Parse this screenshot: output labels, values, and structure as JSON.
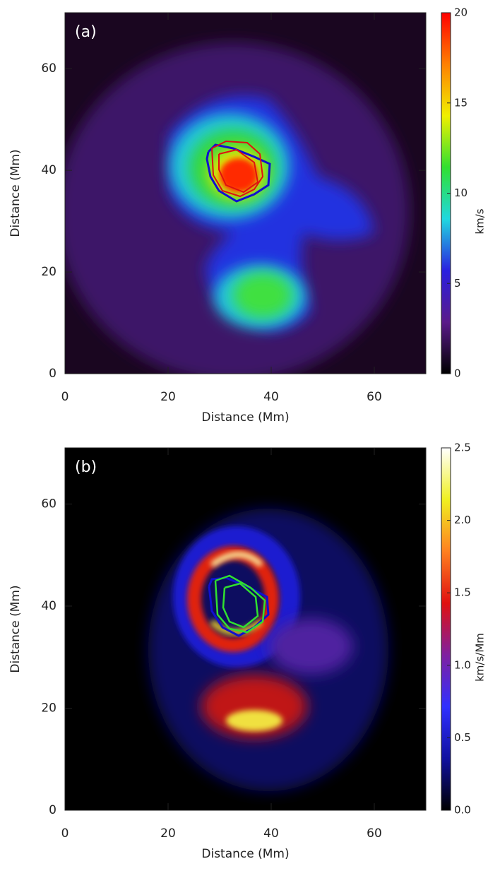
{
  "chart_data": [
    {
      "type": "image",
      "panel_label": "(a)",
      "x_label": "Distance (Mm)",
      "y_label": "Distance (Mm)",
      "xlim": [
        0,
        70
      ],
      "ylim": [
        0,
        71
      ],
      "xticks": [
        0,
        20,
        40,
        60
      ],
      "yticks": [
        0,
        20,
        40,
        60
      ],
      "colorbar_label": "km/s",
      "clim": [
        0,
        20
      ],
      "cticks": [
        0,
        5,
        10,
        15,
        20
      ],
      "colormap": [
        "#000000",
        "#5a1a8a",
        "#2a20e0",
        "#20d8e0",
        "#30e030",
        "#f0f000",
        "#ff8000",
        "#ff0000"
      ]
    },
    {
      "type": "image",
      "panel_label": "(b)",
      "x_label": "Distance (Mm)",
      "y_label": "Distance (Mm)",
      "xlim": [
        0,
        70
      ],
      "ylim": [
        0,
        71
      ],
      "xticks": [
        0,
        20,
        40,
        60
      ],
      "yticks": [
        0,
        20,
        40,
        60
      ],
      "colorbar_label": "km/s/Mm",
      "clim": [
        0,
        2.5
      ],
      "cticks": [
        {
          "value": 0,
          "label": "0.0"
        },
        {
          "value": 0.5,
          "label": "0.5"
        },
        {
          "value": 1,
          "label": "1.0"
        },
        {
          "value": 1.5,
          "label": "1.5"
        },
        {
          "value": 2,
          "label": "2.0"
        },
        {
          "value": 2.5,
          "label": "2.5"
        }
      ],
      "colormap": [
        "#000000",
        "#1010a0",
        "#3030ff",
        "#8020a0",
        "#e01010",
        "#ff8020",
        "#f0f020",
        "#ffffff"
      ]
    }
  ]
}
